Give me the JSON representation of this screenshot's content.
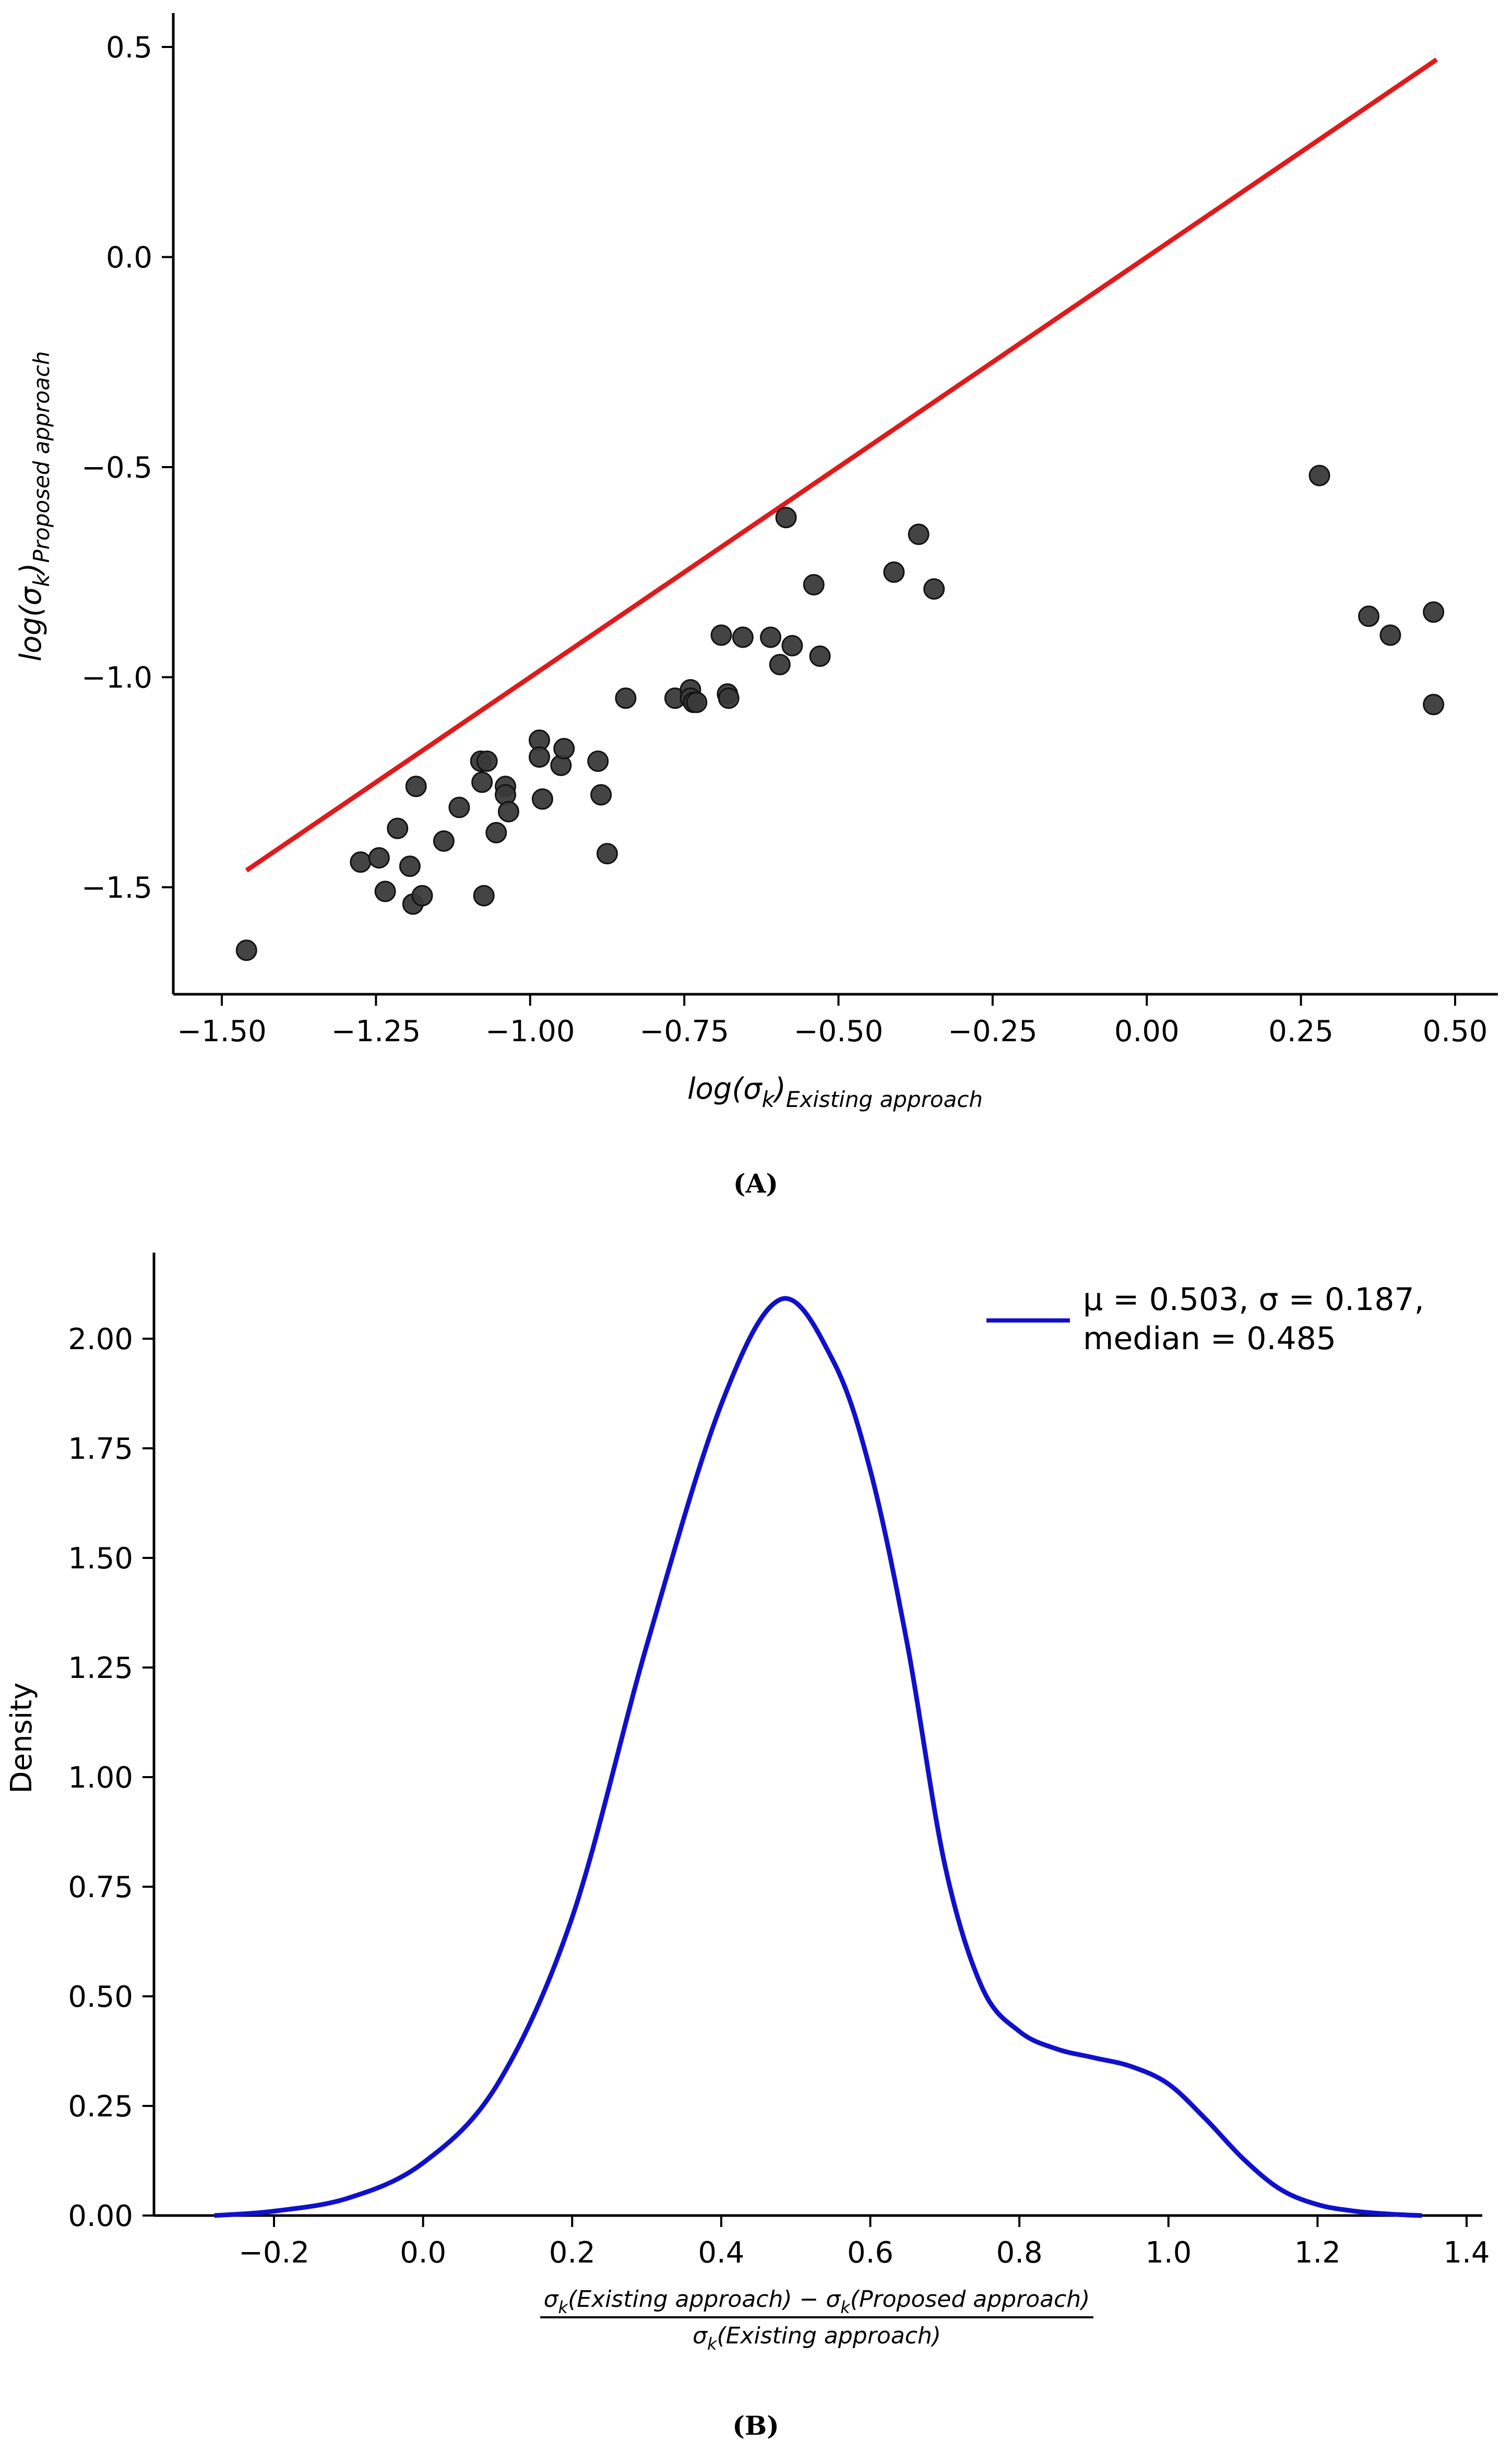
{
  "chart_data": [
    {
      "type": "scatter",
      "panel_label": "A",
      "xlabel": "log(σk)Existing approach",
      "xlabel_main": "log(σ",
      "xlabel_sub_k": "k",
      "xlabel_close": ")",
      "xlabel_sub": "Existing approach",
      "ylabel": "log(σk)Proposed approach",
      "ylabel_main": "log(σ",
      "ylabel_sub_k": "k",
      "ylabel_close": ")",
      "ylabel_sub": "Proposed approach",
      "xlim": [
        -1.5,
        0.52
      ],
      "ylim": [
        -1.75,
        0.55
      ],
      "xticks": [
        -1.5,
        -1.25,
        -1.0,
        -0.75,
        -0.5,
        -0.25,
        0.0,
        0.25,
        0.5
      ],
      "xtick_labels": [
        "−1.50",
        "−1.25",
        "−1.00",
        "−0.75",
        "−0.50",
        "−0.25",
        "0.00",
        "0.25",
        "0.50"
      ],
      "yticks": [
        0.5,
        0.0,
        -0.5,
        -1.0,
        -1.5
      ],
      "ytick_labels": [
        "0.5",
        "0.0",
        "−0.5",
        "−1.0",
        "−1.5"
      ],
      "point_color": "#3a3a3a",
      "line_color": "#e01a1a",
      "reference_line": {
        "x": [
          -1.46,
          0.47
        ],
        "y": [
          -1.46,
          0.47
        ]
      },
      "points": [
        [
          -1.46,
          -1.65
        ],
        [
          -1.275,
          -1.44
        ],
        [
          -1.245,
          -1.43
        ],
        [
          -1.235,
          -1.51
        ],
        [
          -1.215,
          -1.36
        ],
        [
          -1.195,
          -1.45
        ],
        [
          -1.19,
          -1.54
        ],
        [
          -1.185,
          -1.26
        ],
        [
          -1.175,
          -1.52
        ],
        [
          -1.14,
          -1.39
        ],
        [
          -1.115,
          -1.31
        ],
        [
          -1.08,
          -1.2
        ],
        [
          -1.078,
          -1.25
        ],
        [
          -1.075,
          -1.52
        ],
        [
          -1.07,
          -1.2
        ],
        [
          -1.055,
          -1.37
        ],
        [
          -1.04,
          -1.26
        ],
        [
          -1.04,
          -1.28
        ],
        [
          -1.035,
          -1.32
        ],
        [
          -0.985,
          -1.15
        ],
        [
          -0.985,
          -1.19
        ],
        [
          -0.98,
          -1.29
        ],
        [
          -0.95,
          -1.21
        ],
        [
          -0.945,
          -1.17
        ],
        [
          -0.89,
          -1.2
        ],
        [
          -0.885,
          -1.28
        ],
        [
          -0.875,
          -1.42
        ],
        [
          -0.845,
          -1.05
        ],
        [
          -0.765,
          -1.05
        ],
        [
          -0.74,
          -1.03
        ],
        [
          -0.74,
          -1.05
        ],
        [
          -0.735,
          -1.06
        ],
        [
          -0.73,
          -1.06
        ],
        [
          -0.69,
          -0.9
        ],
        [
          -0.68,
          -1.04
        ],
        [
          -0.678,
          -1.05
        ],
        [
          -0.655,
          -0.905
        ],
        [
          -0.61,
          -0.905
        ],
        [
          -0.595,
          -0.97
        ],
        [
          -0.585,
          -0.62
        ],
        [
          -0.575,
          -0.925
        ],
        [
          -0.54,
          -0.78
        ],
        [
          -0.53,
          -0.95
        ],
        [
          -0.41,
          -0.75
        ],
        [
          -0.37,
          -0.66
        ],
        [
          -0.345,
          -0.79
        ],
        [
          0.28,
          -0.52
        ],
        [
          0.36,
          -0.855
        ],
        [
          0.395,
          -0.9
        ],
        [
          0.465,
          -0.845
        ],
        [
          0.465,
          -1.065
        ]
      ]
    },
    {
      "type": "line",
      "subtype": "kde",
      "panel_label": "B",
      "ylabel": "Density",
      "xlabel_numerator": "σk(Existing approach) − σk(Proposed approach)",
      "xlabel_num_sigma": "σ",
      "xlabel_num_k": "k",
      "xlabel_num_part1": "(Existing approach) − σ",
      "xlabel_num_part2": "(Proposed approach)",
      "xlabel_denominator": "σk(Existing approach)",
      "xlabel_den_sigma": "σ",
      "xlabel_den_k": "k",
      "xlabel_den_part": "(Existing approach)",
      "xlim": [
        -0.35,
        1.42
      ],
      "ylim": [
        0,
        2.2
      ],
      "xticks": [
        -0.2,
        0.0,
        0.2,
        0.4,
        0.6,
        0.8,
        1.0,
        1.2,
        1.4
      ],
      "xtick_labels": [
        "−0.2",
        "0.0",
        "0.2",
        "0.4",
        "0.6",
        "0.8",
        "1.0",
        "1.2",
        "1.4"
      ],
      "yticks": [
        0.0,
        0.25,
        0.5,
        0.75,
        1.0,
        1.25,
        1.5,
        1.75,
        2.0
      ],
      "ytick_labels": [
        "0.00",
        "0.25",
        "0.50",
        "0.75",
        "1.00",
        "1.25",
        "1.50",
        "1.75",
        "2.00"
      ],
      "line_color": "#1010cc",
      "legend": {
        "line1": "μ = 0.503, σ = 0.187,",
        "line2": "median = 0.485",
        "position": "top-right"
      },
      "series": [
        {
          "name": "μ = 0.503, σ = 0.187, median = 0.485",
          "x": [
            -0.28,
            -0.2,
            -0.1,
            0.0,
            0.1,
            0.2,
            0.3,
            0.4,
            0.48,
            0.55,
            0.6,
            0.65,
            0.7,
            0.75,
            0.8,
            0.85,
            0.9,
            0.95,
            1.0,
            1.05,
            1.1,
            1.15,
            1.2,
            1.25,
            1.3,
            1.34
          ],
          "y": [
            0.0,
            0.01,
            0.04,
            0.12,
            0.3,
            0.68,
            1.3,
            1.85,
            2.09,
            1.95,
            1.7,
            1.3,
            0.8,
            0.52,
            0.42,
            0.38,
            0.36,
            0.34,
            0.3,
            0.22,
            0.13,
            0.06,
            0.025,
            0.01,
            0.003,
            0.0
          ]
        }
      ]
    }
  ]
}
